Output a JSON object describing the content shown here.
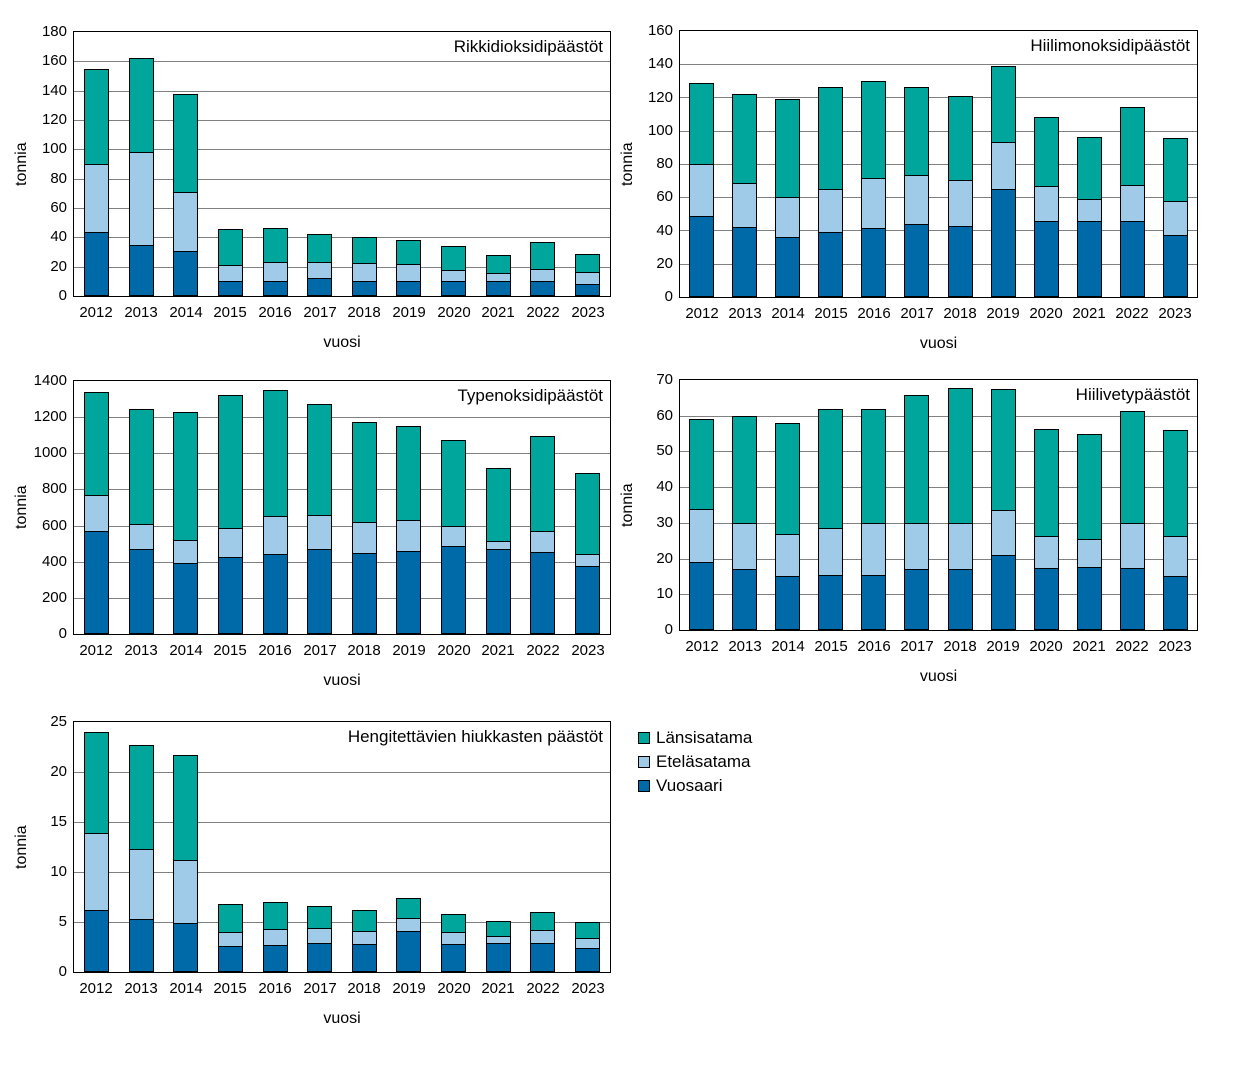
{
  "page": {
    "background": "#ffffff"
  },
  "colors": {
    "lansisatama": "#00A69C",
    "etelasatama": "#9FCAE8",
    "vuosaari": "#0069A8",
    "gridline": "#808080",
    "axis_border": "#000000",
    "text": "#000000"
  },
  "legend": {
    "items": [
      {
        "label": "Länsisatama",
        "color_key": "lansisatama"
      },
      {
        "label": "Eteläsatama",
        "color_key": "etelasatama"
      },
      {
        "label": "Vuosaari",
        "color_key": "vuosaari"
      }
    ]
  },
  "chart_data": [
    {
      "type": "bar",
      "stacked": true,
      "title": "Rikkidioksidipäästöt",
      "xlabel": "vuosi",
      "ylabel": "tonnia",
      "categories": [
        "2012",
        "2013",
        "2014",
        "2015",
        "2016",
        "2017",
        "2018",
        "2019",
        "2020",
        "2021",
        "2022",
        "2023"
      ],
      "ylim": [
        0,
        180
      ],
      "ytick_step": 20,
      "grid": true,
      "legend_position": "none",
      "series": [
        {
          "name": "Vuosaari",
          "color_key": "vuosaari",
          "values": [
            43.5,
            35,
            31,
            10.5,
            10.5,
            12,
            10.5,
            10.5,
            10.5,
            10.5,
            10,
            8.5
          ]
        },
        {
          "name": "Eteläsatama",
          "color_key": "etelasatama",
          "values": [
            46.5,
            63.5,
            40,
            10.5,
            13,
            11,
            12,
            11,
            7.5,
            5.5,
            8.5,
            8
          ]
        },
        {
          "name": "Länsisatama",
          "color_key": "lansisatama",
          "values": [
            65,
            63.5,
            67,
            24.5,
            23,
            19.5,
            18,
            16.5,
            16,
            12,
            18.5,
            12
          ]
        }
      ]
    },
    {
      "type": "bar",
      "stacked": true,
      "title": "Hiilimonoksidipäästöt",
      "xlabel": "vuosi",
      "ylabel": "tonnia",
      "categories": [
        "2012",
        "2013",
        "2014",
        "2015",
        "2016",
        "2017",
        "2018",
        "2019",
        "2020",
        "2021",
        "2022",
        "2023"
      ],
      "ylim": [
        0,
        160
      ],
      "ytick_step": 20,
      "grid": true,
      "legend_position": "none",
      "series": [
        {
          "name": "Vuosaari",
          "color_key": "vuosaari",
          "values": [
            49,
            42,
            36,
            39,
            41.5,
            44,
            42.5,
            65,
            46,
            45.5,
            45.5,
            37.5
          ]
        },
        {
          "name": "Eteläsatama",
          "color_key": "etelasatama",
          "values": [
            31,
            26.5,
            24,
            26,
            30,
            29.5,
            28,
            28,
            20.5,
            13.5,
            22,
            20
          ]
        },
        {
          "name": "Länsisatama",
          "color_key": "lansisatama",
          "values": [
            49,
            53.5,
            59,
            61.5,
            58.5,
            53,
            50.5,
            46,
            41.5,
            37.5,
            47,
            38
          ]
        }
      ]
    },
    {
      "type": "bar",
      "stacked": true,
      "title": "Typenoksidipäästöt",
      "xlabel": "vuosi",
      "ylabel": "tonnia",
      "categories": [
        "2012",
        "2013",
        "2014",
        "2015",
        "2016",
        "2017",
        "2018",
        "2019",
        "2020",
        "2021",
        "2022",
        "2023"
      ],
      "ylim": [
        0,
        1400
      ],
      "ytick_step": 200,
      "grid": true,
      "legend_position": "none",
      "series": [
        {
          "name": "Vuosaari",
          "color_key": "vuosaari",
          "values": [
            570,
            470,
            392,
            428,
            444,
            470,
            450,
            459,
            485,
            472,
            455,
            375
          ]
        },
        {
          "name": "Eteläsatama",
          "color_key": "etelasatama",
          "values": [
            200,
            140,
            130,
            157,
            210,
            188,
            170,
            172,
            110,
            40,
            115,
            68
          ]
        },
        {
          "name": "Länsisatama",
          "color_key": "lansisatama",
          "values": [
            570,
            635,
            706,
            740,
            694,
            612,
            552,
            518,
            476,
            408,
            524,
            447
          ]
        }
      ]
    },
    {
      "type": "bar",
      "stacked": true,
      "title": "Hiilivetypäästöt",
      "xlabel": "vuosi",
      "ylabel": "tonnia",
      "categories": [
        "2012",
        "2013",
        "2014",
        "2015",
        "2016",
        "2017",
        "2018",
        "2019",
        "2020",
        "2021",
        "2022",
        "2023"
      ],
      "ylim": [
        0,
        70
      ],
      "ytick_step": 10,
      "grid": true,
      "legend_position": "none",
      "series": [
        {
          "name": "Vuosaari",
          "color_key": "vuosaari",
          "values": [
            19,
            17,
            15,
            15.5,
            15.5,
            17,
            17,
            21,
            17.3,
            17.7,
            17.4,
            15
          ]
        },
        {
          "name": "Eteläsatama",
          "color_key": "etelasatama",
          "values": [
            15,
            13,
            12,
            13,
            14.5,
            13,
            13,
            12.5,
            9,
            7.7,
            12.6,
            11.3
          ]
        },
        {
          "name": "Länsisatama",
          "color_key": "lansisatama",
          "values": [
            25,
            30,
            31,
            33.5,
            32,
            35.8,
            37.7,
            34,
            30,
            29.6,
            31.2,
            29.7
          ]
        }
      ]
    },
    {
      "type": "bar",
      "stacked": true,
      "title": "Hengitettävien hiukkasten päästöt",
      "xlabel": "vuosi",
      "ylabel": "tonnia",
      "categories": [
        "2012",
        "2013",
        "2014",
        "2015",
        "2016",
        "2017",
        "2018",
        "2019",
        "2020",
        "2021",
        "2022",
        "2023"
      ],
      "ylim": [
        0,
        25
      ],
      "ytick_step": 5,
      "grid": true,
      "legend_position": "none",
      "series": [
        {
          "name": "Vuosaari",
          "color_key": "vuosaari",
          "values": [
            6.2,
            5.3,
            4.9,
            2.6,
            2.7,
            2.9,
            2.8,
            4.1,
            2.8,
            2.9,
            2.9,
            2.4
          ]
        },
        {
          "name": "Eteläsatama",
          "color_key": "etelasatama",
          "values": [
            7.7,
            7.0,
            6.3,
            1.4,
            1.6,
            1.5,
            1.3,
            1.3,
            1.2,
            0.7,
            1.3,
            1.0
          ]
        },
        {
          "name": "Länsisatama",
          "color_key": "lansisatama",
          "values": [
            10.1,
            10.4,
            10.5,
            2.8,
            2.7,
            2.2,
            2.1,
            2.0,
            1.8,
            1.5,
            1.8,
            1.6
          ]
        }
      ]
    }
  ]
}
